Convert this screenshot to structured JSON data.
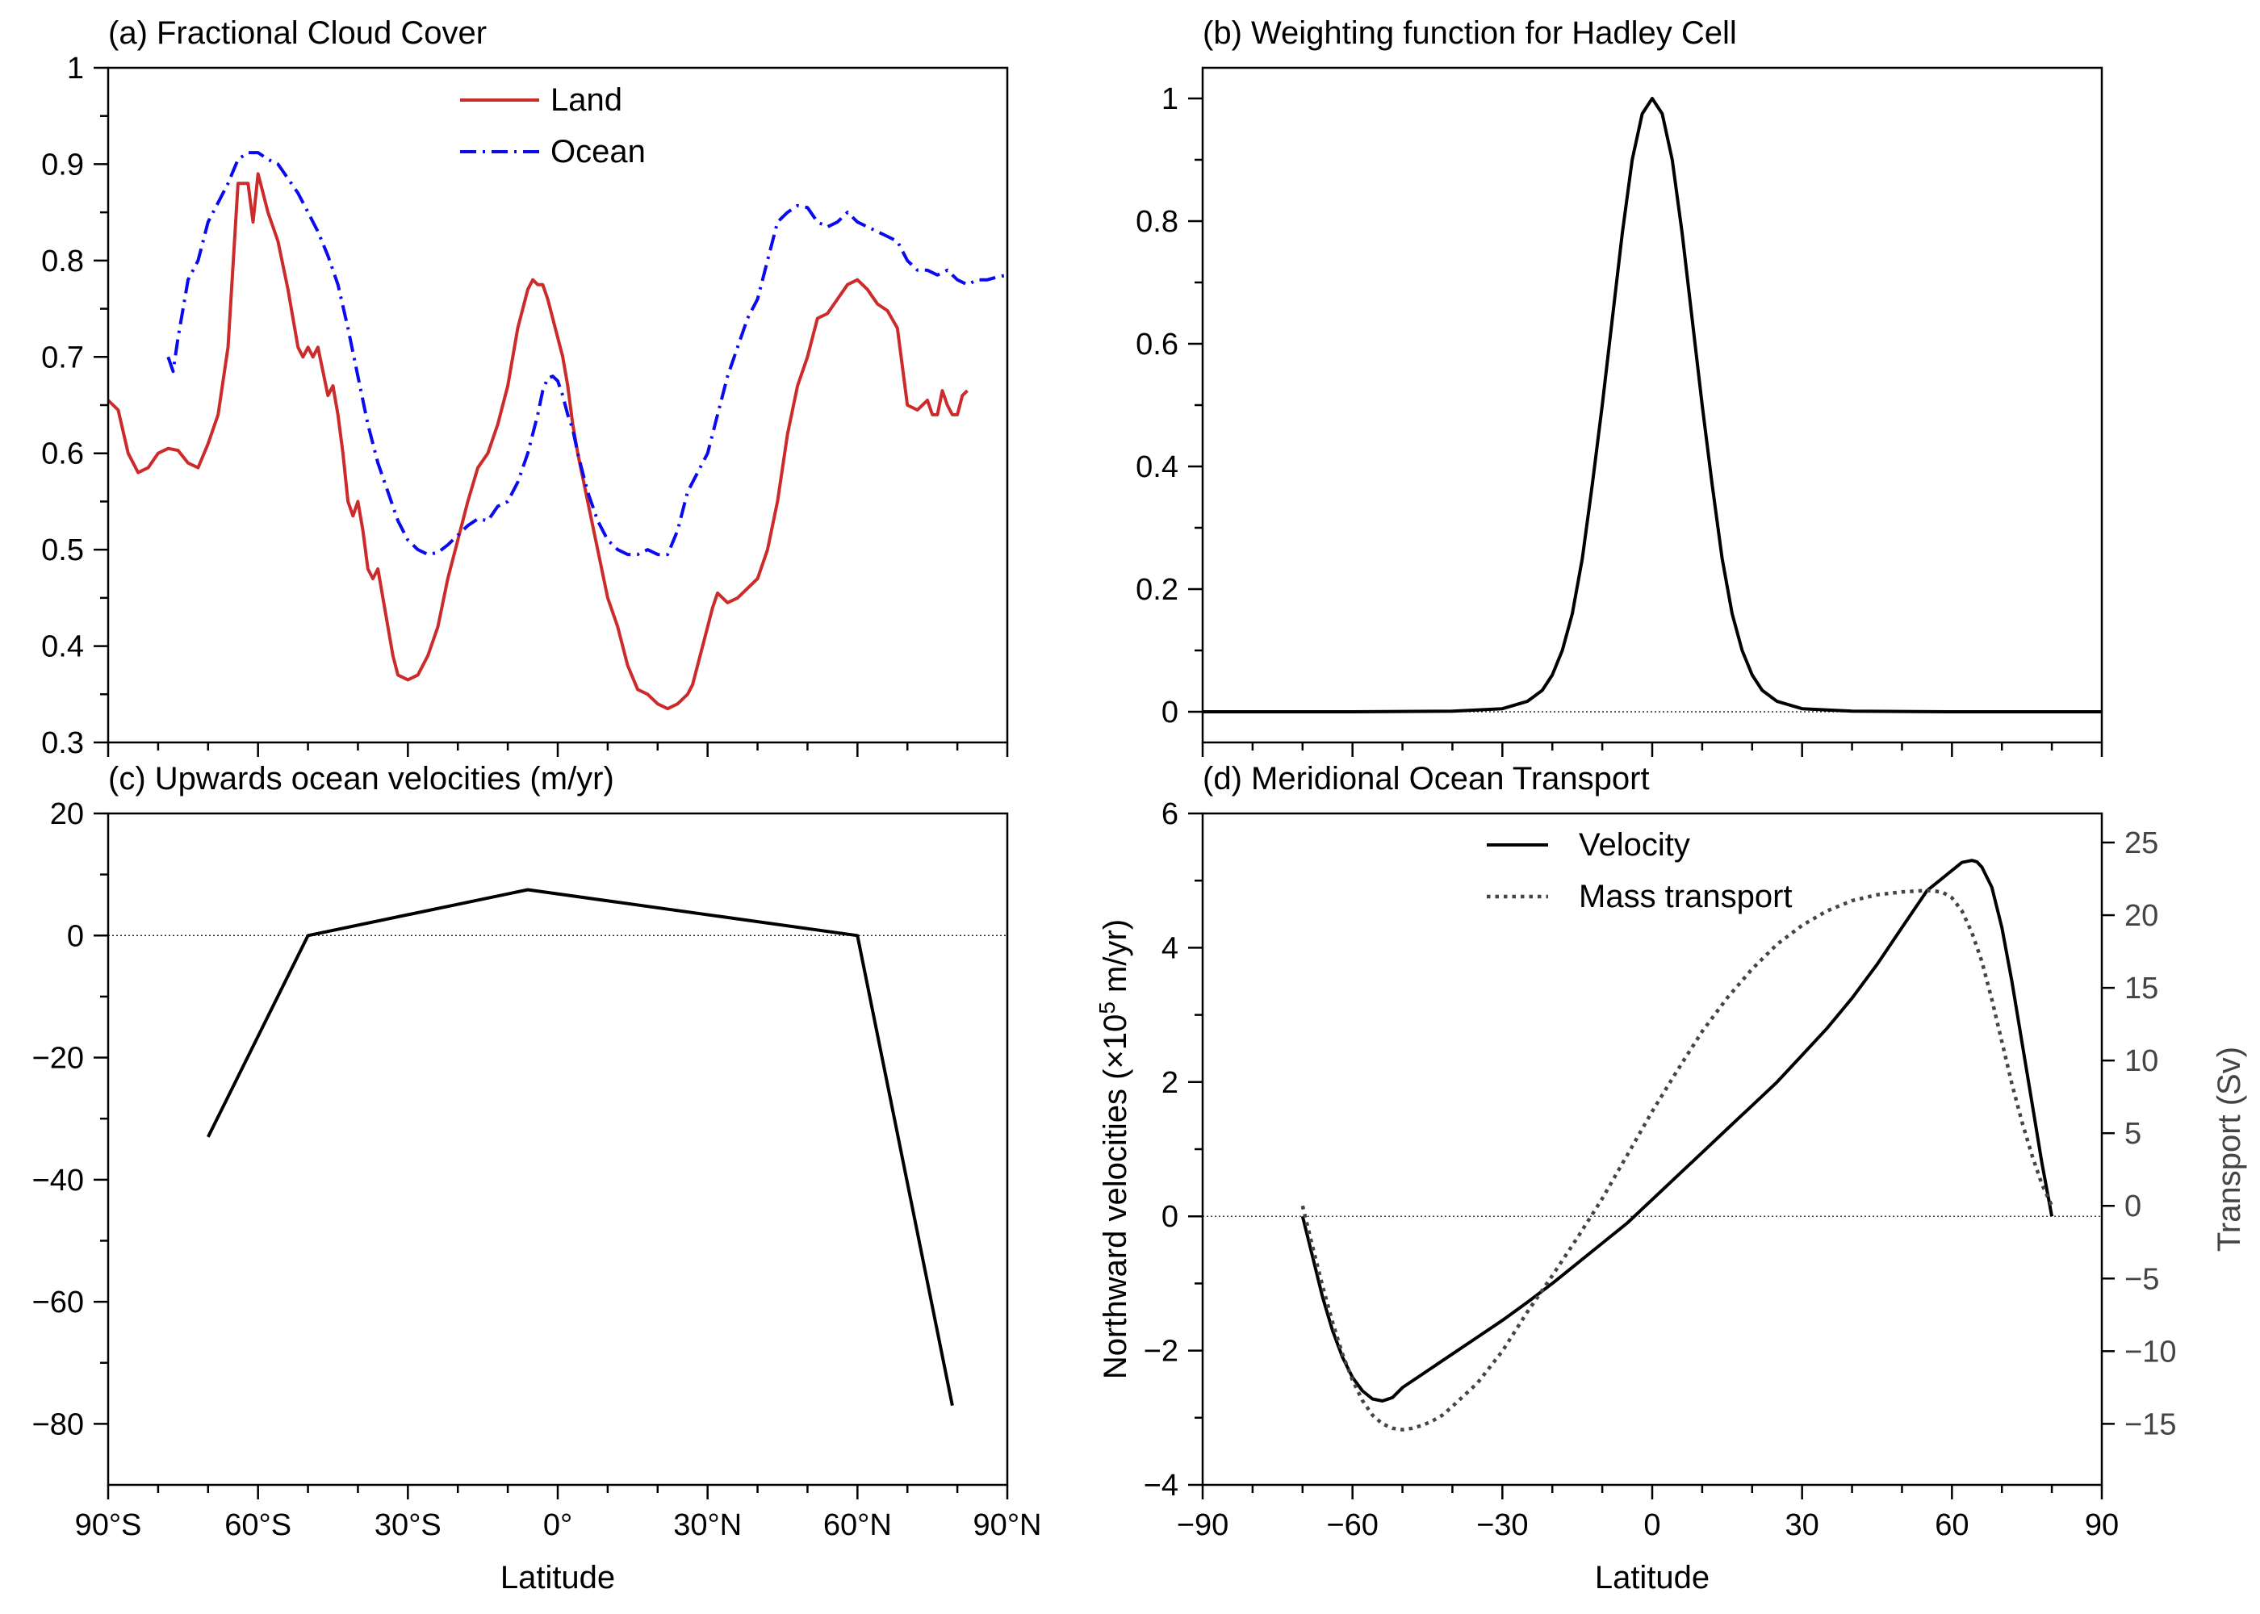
{
  "figure": {
    "x_axis_label": "Latitude"
  },
  "colors": {
    "land": "#cc2b2b",
    "ocean": "#0a0aee",
    "black": "#000000",
    "transport": "#444444"
  },
  "chart_data": [
    {
      "id": "a",
      "type": "line",
      "title": "(a) Fractional Cloud Cover",
      "xlabel": "",
      "ylabel": "",
      "xlim": [
        -90,
        90
      ],
      "ylim": [
        0.3,
        1
      ],
      "x_ticks": [
        -90,
        -60,
        -30,
        0,
        30,
        60,
        90
      ],
      "x_tick_labels": [
        "90°S",
        "60°S",
        "30°S",
        "0°",
        "30°N",
        "60°N",
        "90°N"
      ],
      "y_ticks": [
        0.3,
        0.4,
        0.5,
        0.6,
        0.7,
        0.8,
        0.9,
        1
      ],
      "y_tick_labels": [
        "0.3",
        "0.4",
        "0.5",
        "0.6",
        "0.7",
        "0.8",
        "0.9",
        "1"
      ],
      "legend_position": "top-center",
      "series": [
        {
          "name": "Land",
          "style": "solid",
          "color": "#cc2b2b",
          "x": [
            -90,
            -88,
            -86,
            -84,
            -82,
            -80,
            -78,
            -76,
            -74,
            -72,
            -70,
            -68,
            -66,
            -64,
            -62,
            -61,
            -60,
            -59,
            -58,
            -56,
            -54,
            -52,
            -51,
            -50,
            -49,
            -48,
            -46,
            -45,
            -44,
            -43,
            -42,
            -41,
            -40,
            -39,
            -38,
            -37,
            -36,
            -35,
            -34,
            -33,
            -32,
            -30,
            -28,
            -26,
            -24,
            -22,
            -20,
            -18,
            -16,
            -14,
            -12,
            -10,
            -8,
            -6,
            -5,
            -4,
            -3,
            -2,
            -1,
            0,
            1,
            2,
            3,
            4,
            6,
            8,
            10,
            12,
            14,
            16,
            18,
            20,
            22,
            24,
            26,
            27,
            28,
            30,
            31,
            32,
            34,
            36,
            38,
            40,
            42,
            44,
            46,
            48,
            50,
            52,
            54,
            56,
            58,
            60,
            62,
            64,
            66,
            68,
            70,
            72,
            74,
            75,
            76,
            77,
            78,
            79,
            80,
            81,
            82
          ],
          "y": [
            0.655,
            0.645,
            0.6,
            0.58,
            0.585,
            0.6,
            0.605,
            0.603,
            0.59,
            0.585,
            0.61,
            0.64,
            0.71,
            0.88,
            0.88,
            0.84,
            0.89,
            0.87,
            0.85,
            0.82,
            0.77,
            0.71,
            0.7,
            0.71,
            0.7,
            0.71,
            0.66,
            0.67,
            0.64,
            0.6,
            0.55,
            0.535,
            0.55,
            0.52,
            0.48,
            0.47,
            0.48,
            0.45,
            0.42,
            0.39,
            0.37,
            0.365,
            0.37,
            0.39,
            0.42,
            0.47,
            0.51,
            0.55,
            0.585,
            0.6,
            0.63,
            0.67,
            0.73,
            0.77,
            0.78,
            0.775,
            0.775,
            0.76,
            0.74,
            0.72,
            0.7,
            0.67,
            0.63,
            0.6,
            0.55,
            0.5,
            0.45,
            0.42,
            0.38,
            0.355,
            0.35,
            0.34,
            0.335,
            0.34,
            0.35,
            0.36,
            0.38,
            0.42,
            0.44,
            0.455,
            0.445,
            0.45,
            0.46,
            0.47,
            0.5,
            0.55,
            0.62,
            0.67,
            0.7,
            0.74,
            0.745,
            0.76,
            0.775,
            0.78,
            0.77,
            0.755,
            0.748,
            0.73,
            0.65,
            0.645,
            0.655,
            0.64,
            0.64,
            0.665,
            0.65,
            0.64,
            0.64,
            0.66,
            0.665
          ]
        },
        {
          "name": "Ocean",
          "style": "dashdot",
          "color": "#0a0aee",
          "x": [
            -78,
            -77,
            -76,
            -75,
            -74,
            -72,
            -70,
            -68,
            -66,
            -64,
            -62,
            -60,
            -58,
            -56,
            -54,
            -52,
            -50,
            -48,
            -46,
            -44,
            -42,
            -40,
            -38,
            -36,
            -34,
            -32,
            -30,
            -28,
            -26,
            -24,
            -22,
            -20,
            -18,
            -16,
            -14,
            -12,
            -10,
            -8,
            -6,
            -4,
            -3,
            -2,
            -1,
            0,
            1,
            2,
            3,
            4,
            5,
            6,
            8,
            10,
            12,
            14,
            16,
            18,
            20,
            22,
            24,
            25,
            26,
            28,
            30,
            32,
            34,
            36,
            38,
            40,
            42,
            44,
            46,
            48,
            50,
            52,
            54,
            56,
            58,
            60,
            62,
            64,
            66,
            68,
            70,
            72,
            74,
            76,
            78,
            80,
            82,
            84,
            86,
            88,
            90
          ],
          "y": [
            0.7,
            0.685,
            0.72,
            0.75,
            0.78,
            0.8,
            0.84,
            0.86,
            0.88,
            0.905,
            0.912,
            0.912,
            0.905,
            0.9,
            0.885,
            0.87,
            0.85,
            0.83,
            0.805,
            0.775,
            0.73,
            0.68,
            0.63,
            0.59,
            0.56,
            0.53,
            0.51,
            0.5,
            0.495,
            0.497,
            0.505,
            0.515,
            0.525,
            0.532,
            0.53,
            0.545,
            0.55,
            0.57,
            0.6,
            0.64,
            0.665,
            0.678,
            0.68,
            0.675,
            0.66,
            0.64,
            0.625,
            0.6,
            0.58,
            0.56,
            0.53,
            0.51,
            0.5,
            0.495,
            0.495,
            0.5,
            0.495,
            0.495,
            0.52,
            0.54,
            0.56,
            0.58,
            0.6,
            0.64,
            0.68,
            0.71,
            0.74,
            0.76,
            0.8,
            0.84,
            0.85,
            0.857,
            0.855,
            0.84,
            0.835,
            0.84,
            0.85,
            0.84,
            0.835,
            0.83,
            0.825,
            0.82,
            0.8,
            0.79,
            0.79,
            0.785,
            0.79,
            0.78,
            0.775,
            0.78,
            0.78,
            0.783,
            0.785
          ]
        }
      ]
    },
    {
      "id": "b",
      "type": "line",
      "title": "(b) Weighting function for Hadley Cell",
      "xlabel": "",
      "ylabel": "",
      "xlim": [
        -90,
        90
      ],
      "ylim": [
        -0.05,
        1.05
      ],
      "x_ticks": [
        -90,
        -60,
        -30,
        0,
        30,
        60,
        90
      ],
      "y_ticks": [
        0,
        0.2,
        0.4,
        0.6,
        0.8,
        1
      ],
      "y_tick_labels": [
        "0",
        "0.2",
        "0.4",
        "0.6",
        "0.8",
        "1"
      ],
      "zero_line": true,
      "series": [
        {
          "style": "solid",
          "color": "#000000",
          "x": [
            -90,
            -60,
            -40,
            -30,
            -25,
            -22,
            -20,
            -18,
            -16,
            -14,
            -12,
            -10,
            -8,
            -6,
            -4,
            -2,
            0,
            2,
            4,
            6,
            8,
            10,
            12,
            14,
            16,
            18,
            20,
            22,
            25,
            30,
            40,
            60,
            90
          ],
          "y": [
            0,
            0,
            0.001,
            0.005,
            0.017,
            0.035,
            0.06,
            0.1,
            0.16,
            0.25,
            0.37,
            0.5,
            0.64,
            0.78,
            0.9,
            0.975,
            1,
            0.975,
            0.9,
            0.78,
            0.64,
            0.5,
            0.37,
            0.25,
            0.16,
            0.1,
            0.06,
            0.035,
            0.017,
            0.005,
            0.001,
            0,
            0
          ]
        }
      ]
    },
    {
      "id": "c",
      "type": "line",
      "title": "(c) Upwards ocean velocities (m/yr)",
      "xlabel": "Latitude",
      "ylabel": "",
      "xlim": [
        -90,
        90
      ],
      "ylim": [
        -90,
        20
      ],
      "x_ticks": [
        -90,
        -60,
        -30,
        0,
        30,
        60,
        90
      ],
      "x_tick_labels": [
        "90°S",
        "60°S",
        "30°S",
        "0°",
        "30°N",
        "60°N",
        "90°N"
      ],
      "y_ticks": [
        -80,
        -60,
        -40,
        -20,
        0,
        20
      ],
      "y_tick_labels": [
        "−80",
        "−60",
        "−40",
        "−20",
        "0",
        "20"
      ],
      "zero_line": true,
      "series": [
        {
          "style": "solid",
          "color": "#000000",
          "x": [
            -70,
            -50,
            -6,
            60,
            79
          ],
          "y": [
            -33,
            0,
            7.5,
            0,
            -77
          ]
        }
      ]
    },
    {
      "id": "d",
      "type": "line",
      "title": "(d) Meridional Ocean Transport",
      "xlabel": "Latitude",
      "ylabel_left": "Northward velocities (×10",
      "ylabel_left_sup": "5",
      "ylabel_left_end": " m/yr)",
      "ylabel_right": "Transport (Sv)",
      "xlim": [
        -90,
        90
      ],
      "ylim": [
        -4,
        6
      ],
      "ylim_right": [
        -19.2,
        27
      ],
      "x_ticks": [
        -90,
        -60,
        -30,
        0,
        30,
        60,
        90
      ],
      "x_tick_labels": [
        "−90",
        "−60",
        "−30",
        "0",
        "30",
        "60",
        "90"
      ],
      "y_ticks": [
        -4,
        -2,
        0,
        2,
        4,
        6
      ],
      "y_tick_labels": [
        "−4",
        "−2",
        "0",
        "2",
        "4",
        "6"
      ],
      "y_ticks_right": [
        -15,
        -10,
        -5,
        0,
        5,
        10,
        15,
        20,
        25
      ],
      "y_tick_labels_right": [
        "−15",
        "−10",
        "−5",
        "0",
        "5",
        "10",
        "15",
        "20",
        "25"
      ],
      "zero_line": true,
      "legend_position": "top-center",
      "series": [
        {
          "name": "Velocity",
          "style": "solid",
          "axis": "left",
          "color": "#000000",
          "x": [
            -70,
            -68,
            -66,
            -64,
            -62,
            -60,
            -58,
            -56,
            -54,
            -52,
            -50,
            -45,
            -40,
            -35,
            -30,
            -25,
            -20,
            -15,
            -10,
            -5,
            0,
            5,
            10,
            15,
            20,
            25,
            30,
            35,
            40,
            45,
            50,
            55,
            60,
            62,
            64,
            65,
            66,
            68,
            70,
            72,
            74,
            76,
            78,
            80
          ],
          "y": [
            0,
            -0.6,
            -1.2,
            -1.7,
            -2.1,
            -2.4,
            -2.6,
            -2.72,
            -2.75,
            -2.7,
            -2.55,
            -2.3,
            -2.05,
            -1.8,
            -1.55,
            -1.28,
            -1.0,
            -0.7,
            -0.4,
            -0.1,
            0.25,
            0.6,
            0.95,
            1.3,
            1.65,
            2.0,
            2.4,
            2.8,
            3.25,
            3.75,
            4.3,
            4.85,
            5.15,
            5.27,
            5.3,
            5.28,
            5.2,
            4.9,
            4.3,
            3.5,
            2.6,
            1.7,
            0.8,
            0
          ]
        },
        {
          "name": "Mass transport",
          "style": "dotted",
          "axis": "right",
          "color": "#444444",
          "x": [
            -70,
            -68,
            -66,
            -64,
            -62,
            -60,
            -58,
            -56,
            -54,
            -52,
            -50,
            -48,
            -46,
            -44,
            -42,
            -40,
            -35,
            -30,
            -25,
            -20,
            -15,
            -10,
            -5,
            0,
            5,
            10,
            15,
            20,
            25,
            30,
            35,
            40,
            45,
            50,
            55,
            58,
            60,
            62,
            64,
            66,
            68,
            70,
            72,
            74,
            76,
            78,
            80
          ],
          "y": [
            0,
            -2.8,
            -5.5,
            -8,
            -10.2,
            -12,
            -13.4,
            -14.4,
            -15,
            -15.3,
            -15.4,
            -15.3,
            -15.1,
            -14.8,
            -14.4,
            -13.8,
            -12.2,
            -10,
            -7.3,
            -4.8,
            -2.2,
            0.5,
            3.5,
            6.5,
            9.3,
            12,
            14.3,
            16.3,
            18,
            19.3,
            20.3,
            21,
            21.4,
            21.6,
            21.7,
            21.6,
            21.2,
            20.3,
            18.8,
            16.8,
            14.2,
            11.3,
            8.4,
            5.8,
            3.5,
            1.5,
            0
          ]
        }
      ]
    }
  ]
}
